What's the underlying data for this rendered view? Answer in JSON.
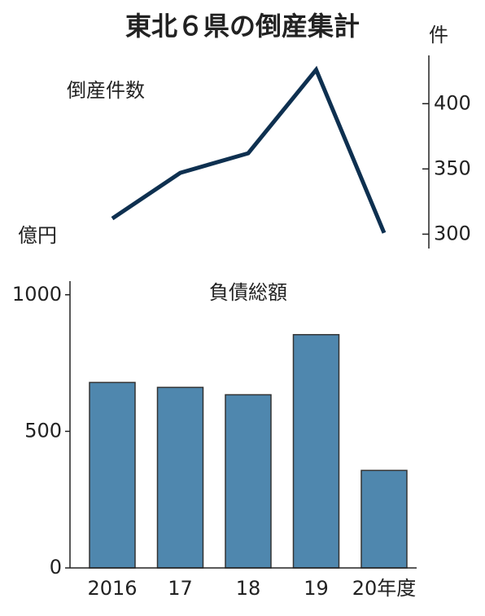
{
  "chart_data": [
    {
      "type": "line",
      "title": "東北６県の倒産集計",
      "series_label": "倒産件数",
      "axis_label": "件",
      "values": [
        312,
        347,
        362,
        426,
        301
      ],
      "color": "#0e3050",
      "ylim": [
        289,
        437
      ],
      "yticks": [
        300,
        350,
        400
      ]
    },
    {
      "type": "bar",
      "series_label": "負債総額",
      "axis_label": "億円",
      "categories": [
        "2016",
        "17",
        "18",
        "19",
        "20年度"
      ],
      "values": [
        679,
        661,
        634,
        854,
        357
      ],
      "color": "#4f87ae",
      "ylim": [
        0,
        1050
      ],
      "yticks": [
        0,
        500,
        1000
      ]
    }
  ]
}
